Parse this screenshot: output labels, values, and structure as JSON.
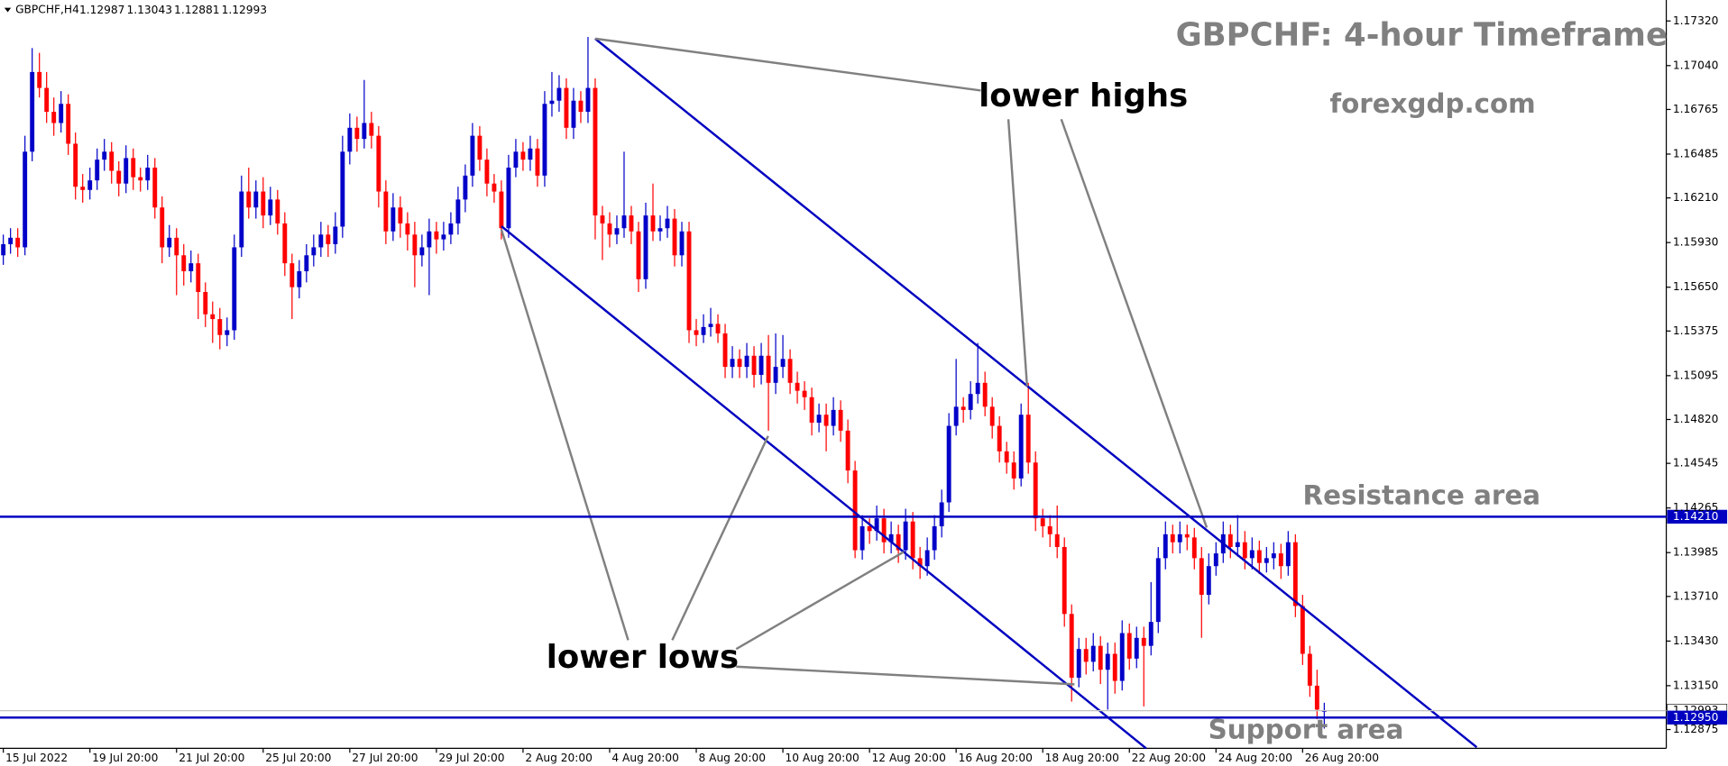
{
  "chart_data": {
    "type": "candlestick",
    "header": {
      "symbol": "GBPCHF,H4",
      "values": [
        1.12987,
        1.13043,
        1.12881,
        1.12993
      ]
    },
    "annotations": {
      "title": "GBPCHF: 4-hour Timeframe",
      "site": "forexgdp.com",
      "lower_highs": "lower highs",
      "lower_lows": "lower lows",
      "resistance": "Resistance area",
      "support": "Support area"
    },
    "up_color": "#0000c8",
    "down_color": "#ff0000",
    "ylim": [
      1.12757,
      1.17417
    ],
    "yticks": [
      {
        "value": 1.1732,
        "label": "1.17320"
      },
      {
        "value": 1.1704,
        "label": "1.17040"
      },
      1.16765,
      1.16485,
      {
        "value": 1.1621,
        "label": "1.16210"
      },
      {
        "value": 1.1593,
        "label": "1.15930"
      },
      {
        "value": 1.1565,
        "label": "1.15650"
      },
      1.15375,
      1.15095,
      {
        "value": 1.1482,
        "label": "1.14820"
      },
      1.14545,
      1.14265,
      1.13985,
      {
        "value": 1.1371,
        "label": "1.13710"
      },
      {
        "value": 1.1343,
        "label": "1.13430"
      },
      {
        "value": 1.1315,
        "label": "1.13150"
      },
      1.12875
    ],
    "resistance_level": {
      "value": 1.1421,
      "label": "1.14210"
    },
    "support_level": {
      "value": 1.1295,
      "label": "1.12950"
    },
    "last_price": 1.12993,
    "categories": [
      "15 Jul 2022",
      null,
      null,
      null,
      null,
      null,
      null,
      null,
      null,
      null,
      null,
      null,
      "19 Jul 20:00",
      null,
      null,
      null,
      null,
      null,
      null,
      null,
      null,
      null,
      null,
      null,
      "21 Jul 20:00",
      null,
      null,
      null,
      null,
      null,
      null,
      null,
      null,
      null,
      null,
      null,
      "25 Jul 20:00",
      null,
      null,
      null,
      null,
      null,
      null,
      null,
      null,
      null,
      null,
      null,
      "27 Jul 20:00",
      null,
      null,
      null,
      null,
      null,
      null,
      null,
      null,
      null,
      null,
      null,
      "29 Jul 20:00",
      null,
      null,
      null,
      null,
      null,
      null,
      null,
      null,
      null,
      null,
      null,
      "2 Aug 20:00",
      null,
      null,
      null,
      null,
      null,
      null,
      null,
      null,
      null,
      null,
      null,
      "4 Aug 20:00",
      null,
      null,
      null,
      null,
      null,
      null,
      null,
      null,
      null,
      null,
      null,
      "8 Aug 20:00",
      null,
      null,
      null,
      null,
      null,
      null,
      null,
      null,
      null,
      null,
      null,
      "10 Aug 20:00",
      null,
      null,
      null,
      null,
      null,
      null,
      null,
      null,
      null,
      null,
      null,
      "12 Aug 20:00",
      null,
      null,
      null,
      null,
      null,
      null,
      null,
      null,
      null,
      null,
      null,
      "16 Aug 20:00",
      null,
      null,
      null,
      null,
      null,
      null,
      null,
      null,
      null,
      null,
      null,
      "18 Aug 20:00",
      null,
      null,
      null,
      null,
      null,
      null,
      null,
      null,
      null,
      null,
      null,
      "22 Aug 20:00",
      null,
      null,
      null,
      null,
      null,
      null,
      null,
      null,
      null,
      null,
      null,
      "24 Aug 20:00",
      null,
      null,
      null,
      null,
      null,
      null,
      null,
      null,
      null,
      null,
      null,
      "26 Aug 20:00",
      null,
      null,
      null
    ],
    "candles": [
      [
        1.1585,
        1.1598,
        1.1579,
        1.1592
      ],
      [
        1.1592,
        1.1602,
        1.1586,
        1.1596
      ],
      [
        1.1596,
        1.1602,
        1.1584,
        1.159
      ],
      [
        1.159,
        1.166,
        1.1585,
        1.165
      ],
      [
        1.165,
        1.1715,
        1.1644,
        1.17
      ],
      [
        1.17,
        1.1712,
        1.1684,
        1.169
      ],
      [
        1.169,
        1.17,
        1.1668,
        1.1675
      ],
      [
        1.1675,
        1.1684,
        1.166,
        1.1668
      ],
      [
        1.1668,
        1.1688,
        1.1662,
        1.168
      ],
      [
        1.168,
        1.1686,
        1.1648,
        1.1655
      ],
      [
        1.1655,
        1.1662,
        1.162,
        1.1628
      ],
      [
        1.1628,
        1.1636,
        1.1618,
        1.1626
      ],
      [
        1.1626,
        1.164,
        1.162,
        1.1632
      ],
      [
        1.1632,
        1.1652,
        1.1626,
        1.1645
      ],
      [
        1.1645,
        1.1658,
        1.1638,
        1.165
      ],
      [
        1.165,
        1.1656,
        1.163,
        1.1638
      ],
      [
        1.1638,
        1.1644,
        1.1622,
        1.163
      ],
      [
        1.163,
        1.1654,
        1.1624,
        1.1646
      ],
      [
        1.1646,
        1.1652,
        1.1626,
        1.1634
      ],
      [
        1.1634,
        1.164,
        1.1625,
        1.1632
      ],
      [
        1.1632,
        1.1648,
        1.1626,
        1.164
      ],
      [
        1.164,
        1.1646,
        1.1608,
        1.1615
      ],
      [
        1.1615,
        1.1622,
        1.158,
        1.159
      ],
      [
        1.159,
        1.1604,
        1.1584,
        1.1596
      ],
      [
        1.1596,
        1.1602,
        1.156,
        1.1585
      ],
      [
        1.1585,
        1.1592,
        1.1566,
        1.1575
      ],
      [
        1.1575,
        1.1588,
        1.1568,
        1.158
      ],
      [
        1.158,
        1.1586,
        1.1545,
        1.1562
      ],
      [
        1.1562,
        1.1568,
        1.154,
        1.1548
      ],
      [
        1.1548,
        1.1556,
        1.153,
        1.1545
      ],
      [
        1.1545,
        1.1552,
        1.1526,
        1.1535
      ],
      [
        1.1535,
        1.1546,
        1.1528,
        1.1538
      ],
      [
        1.1538,
        1.1598,
        1.1532,
        1.159
      ],
      [
        1.159,
        1.1635,
        1.1584,
        1.1625
      ],
      [
        1.1625,
        1.164,
        1.1608,
        1.1615
      ],
      [
        1.1615,
        1.1632,
        1.1608,
        1.1625
      ],
      [
        1.1625,
        1.1634,
        1.1602,
        1.161
      ],
      [
        1.161,
        1.1628,
        1.1604,
        1.162
      ],
      [
        1.162,
        1.1626,
        1.1598,
        1.1605
      ],
      [
        1.1605,
        1.1612,
        1.1572,
        1.158
      ],
      [
        1.158,
        1.1586,
        1.1545,
        1.1565
      ],
      [
        1.1565,
        1.1582,
        1.1558,
        1.1575
      ],
      [
        1.1575,
        1.1592,
        1.1568,
        1.1585
      ],
      [
        1.1585,
        1.1598,
        1.1578,
        1.159
      ],
      [
        1.159,
        1.1606,
        1.1584,
        1.1598
      ],
      [
        1.1598,
        1.1604,
        1.1584,
        1.1592
      ],
      [
        1.1592,
        1.1612,
        1.1586,
        1.1603
      ],
      [
        1.1603,
        1.166,
        1.1596,
        1.165
      ],
      [
        1.165,
        1.1674,
        1.1642,
        1.1665
      ],
      [
        1.1665,
        1.1672,
        1.165,
        1.1658
      ],
      [
        1.1658,
        1.1695,
        1.1652,
        1.1668
      ],
      [
        1.1668,
        1.1675,
        1.1652,
        1.166
      ],
      [
        1.166,
        1.1666,
        1.1615,
        1.1625
      ],
      [
        1.1625,
        1.1632,
        1.1592,
        1.16
      ],
      [
        1.16,
        1.1624,
        1.1594,
        1.1615
      ],
      [
        1.1615,
        1.1622,
        1.1596,
        1.1605
      ],
      [
        1.1605,
        1.1612,
        1.1588,
        1.1598
      ],
      [
        1.1598,
        1.1606,
        1.1565,
        1.1585
      ],
      [
        1.1585,
        1.1598,
        1.1578,
        1.159
      ],
      [
        1.159,
        1.1608,
        1.156,
        1.16
      ],
      [
        1.16,
        1.1606,
        1.1586,
        1.1595
      ],
      [
        1.1595,
        1.1606,
        1.1588,
        1.1598
      ],
      [
        1.1598,
        1.1612,
        1.1592,
        1.1605
      ],
      [
        1.1605,
        1.1628,
        1.1598,
        1.162
      ],
      [
        1.162,
        1.1642,
        1.1612,
        1.1635
      ],
      [
        1.1635,
        1.1668,
        1.1628,
        1.166
      ],
      [
        1.166,
        1.1666,
        1.1638,
        1.1645
      ],
      [
        1.1645,
        1.1652,
        1.1622,
        1.163
      ],
      [
        1.163,
        1.1636,
        1.1618,
        1.1625
      ],
      [
        1.1625,
        1.1632,
        1.1595,
        1.1602
      ],
      [
        1.1602,
        1.1648,
        1.1596,
        1.164
      ],
      [
        1.164,
        1.1658,
        1.1634,
        1.165
      ],
      [
        1.165,
        1.1656,
        1.1638,
        1.1645
      ],
      [
        1.1645,
        1.166,
        1.1638,
        1.1652
      ],
      [
        1.1652,
        1.1658,
        1.1628,
        1.1635
      ],
      [
        1.1635,
        1.1688,
        1.1628,
        1.168
      ],
      [
        1.168,
        1.17,
        1.1672,
        1.1682
      ],
      [
        1.1682,
        1.1698,
        1.1675,
        1.169
      ],
      [
        1.169,
        1.1696,
        1.1658,
        1.1665
      ],
      [
        1.1665,
        1.169,
        1.1658,
        1.1682
      ],
      [
        1.1682,
        1.1688,
        1.1668,
        1.1675
      ],
      [
        1.1675,
        1.1722,
        1.1668,
        1.169
      ],
      [
        1.169,
        1.1696,
        1.1595,
        1.161
      ],
      [
        1.161,
        1.1616,
        1.1582,
        1.1605
      ],
      [
        1.1605,
        1.1612,
        1.159,
        1.1598
      ],
      [
        1.1598,
        1.161,
        1.1592,
        1.1602
      ],
      [
        1.1602,
        1.165,
        1.1596,
        1.161
      ],
      [
        1.161,
        1.1616,
        1.1592,
        1.16
      ],
      [
        1.16,
        1.1606,
        1.1562,
        1.157
      ],
      [
        1.157,
        1.1618,
        1.1564,
        1.161
      ],
      [
        1.161,
        1.163,
        1.1594,
        1.16
      ],
      [
        1.16,
        1.161,
        1.1594,
        1.1602
      ],
      [
        1.1602,
        1.1616,
        1.1596,
        1.1608
      ],
      [
        1.1608,
        1.1614,
        1.1578,
        1.1585
      ],
      [
        1.1585,
        1.1606,
        1.1578,
        1.16
      ],
      [
        1.16,
        1.1606,
        1.153,
        1.1538
      ],
      [
        1.1538,
        1.1545,
        1.1528,
        1.1535
      ],
      [
        1.1535,
        1.1548,
        1.153,
        1.154
      ],
      [
        1.154,
        1.1552,
        1.1534,
        1.1542
      ],
      [
        1.1542,
        1.1548,
        1.153,
        1.1536
      ],
      [
        1.1536,
        1.1542,
        1.1508,
        1.1515
      ],
      [
        1.1515,
        1.1528,
        1.1508,
        1.152
      ],
      [
        1.152,
        1.1526,
        1.1508,
        1.1515
      ],
      [
        1.1515,
        1.153,
        1.1508,
        1.1522
      ],
      [
        1.1522,
        1.1528,
        1.1502,
        1.151
      ],
      [
        1.151,
        1.153,
        1.1504,
        1.1522
      ],
      [
        1.1522,
        1.1535,
        1.1475,
        1.1505
      ],
      [
        1.1505,
        1.1536,
        1.1498,
        1.1515
      ],
      [
        1.1515,
        1.1535,
        1.1508,
        1.152
      ],
      [
        1.152,
        1.1526,
        1.1498,
        1.1505
      ],
      [
        1.1505,
        1.1512,
        1.1492,
        1.15
      ],
      [
        1.15,
        1.1506,
        1.1488,
        1.1496
      ],
      [
        1.1496,
        1.1502,
        1.1472,
        1.148
      ],
      [
        1.148,
        1.1492,
        1.1474,
        1.1485
      ],
      [
        1.1485,
        1.1492,
        1.1462,
        1.1478
      ],
      [
        1.1478,
        1.1496,
        1.1472,
        1.1488
      ],
      [
        1.1488,
        1.1494,
        1.1468,
        1.1475
      ],
      [
        1.1475,
        1.1482,
        1.1442,
        1.145
      ],
      [
        1.145,
        1.1456,
        1.1395,
        1.14
      ],
      [
        1.14,
        1.1422,
        1.1394,
        1.1415
      ],
      [
        1.1415,
        1.142,
        1.1404,
        1.1412
      ],
      [
        1.1412,
        1.1428,
        1.1406,
        1.142
      ],
      [
        1.142,
        1.1426,
        1.1398,
        1.1405
      ],
      [
        1.1405,
        1.1418,
        1.1398,
        1.141
      ],
      [
        1.141,
        1.1416,
        1.1392,
        1.14
      ],
      [
        1.14,
        1.1426,
        1.1394,
        1.1418
      ],
      [
        1.1418,
        1.1424,
        1.1388,
        1.1395
      ],
      [
        1.1395,
        1.1402,
        1.1382,
        1.139
      ],
      [
        1.139,
        1.1408,
        1.1384,
        1.14
      ],
      [
        1.14,
        1.1422,
        1.1394,
        1.1415
      ],
      [
        1.1415,
        1.1438,
        1.1408,
        1.143
      ],
      [
        1.143,
        1.1486,
        1.1424,
        1.1478
      ],
      [
        1.1478,
        1.152,
        1.1472,
        1.149
      ],
      [
        1.149,
        1.1496,
        1.148,
        1.1488
      ],
      [
        1.1488,
        1.1506,
        1.1482,
        1.1498
      ],
      [
        1.1498,
        1.153,
        1.1492,
        1.1505
      ],
      [
        1.1505,
        1.1512,
        1.1484,
        1.149
      ],
      [
        1.149,
        1.1496,
        1.147,
        1.1478
      ],
      [
        1.1478,
        1.1484,
        1.1455,
        1.1462
      ],
      [
        1.1462,
        1.1468,
        1.1448,
        1.1455
      ],
      [
        1.1455,
        1.1462,
        1.1438,
        1.1445
      ],
      [
        1.1445,
        1.1492,
        1.144,
        1.1485
      ],
      [
        1.1485,
        1.1505,
        1.1448,
        1.1455
      ],
      [
        1.1455,
        1.1462,
        1.1412,
        1.142
      ],
      [
        1.142,
        1.1426,
        1.1408,
        1.1415
      ],
      [
        1.1415,
        1.1422,
        1.1402,
        1.141
      ],
      [
        1.141,
        1.1428,
        1.1395,
        1.1402
      ],
      [
        1.1402,
        1.1408,
        1.1352,
        1.136
      ],
      [
        1.136,
        1.1366,
        1.1305,
        1.132
      ],
      [
        1.132,
        1.1345,
        1.1314,
        1.1338
      ],
      [
        1.1338,
        1.1345,
        1.1322,
        1.133
      ],
      [
        1.133,
        1.1348,
        1.1324,
        1.134
      ],
      [
        1.134,
        1.1346,
        1.1316,
        1.1325
      ],
      [
        1.1325,
        1.1342,
        1.13,
        1.1335
      ],
      [
        1.1335,
        1.1342,
        1.131,
        1.1318
      ],
      [
        1.1318,
        1.1356,
        1.1312,
        1.1348
      ],
      [
        1.1348,
        1.1354,
        1.1325,
        1.1332
      ],
      [
        1.1332,
        1.1352,
        1.1326,
        1.1345
      ],
      [
        1.1345,
        1.1352,
        1.1302,
        1.134
      ],
      [
        1.134,
        1.138,
        1.1334,
        1.1355
      ],
      [
        1.1355,
        1.1402,
        1.1348,
        1.1395
      ],
      [
        1.1395,
        1.1418,
        1.1388,
        1.141
      ],
      [
        1.141,
        1.1416,
        1.1398,
        1.1405
      ],
      [
        1.1405,
        1.1418,
        1.1398,
        1.141
      ],
      [
        1.141,
        1.1416,
        1.14,
        1.1408
      ],
      [
        1.1408,
        1.1414,
        1.1388,
        1.1395
      ],
      [
        1.1395,
        1.1402,
        1.1345,
        1.1372
      ],
      [
        1.1372,
        1.1398,
        1.1366,
        1.139
      ],
      [
        1.139,
        1.1405,
        1.1384,
        1.1398
      ],
      [
        1.1398,
        1.1418,
        1.1392,
        1.141
      ],
      [
        1.141,
        1.1416,
        1.1395,
        1.1402
      ],
      [
        1.1402,
        1.1422,
        1.1396,
        1.1405
      ],
      [
        1.1405,
        1.1412,
        1.1388,
        1.1395
      ],
      [
        1.1395,
        1.1408,
        1.1388,
        1.14
      ],
      [
        1.14,
        1.1406,
        1.1385,
        1.1392
      ],
      [
        1.1392,
        1.1402,
        1.1386,
        1.1395
      ],
      [
        1.1395,
        1.1405,
        1.1388,
        1.1398
      ],
      [
        1.1398,
        1.1404,
        1.1382,
        1.139
      ],
      [
        1.139,
        1.1412,
        1.1384,
        1.1405
      ],
      [
        1.1405,
        1.141,
        1.1358,
        1.1365
      ],
      [
        1.1365,
        1.1372,
        1.1328,
        1.1335
      ],
      [
        1.1335,
        1.134,
        1.1308,
        1.1315
      ],
      [
        1.1315,
        1.1325,
        1.1294,
        1.13
      ],
      [
        1.12987,
        1.13043,
        1.12881,
        1.12993
      ]
    ]
  }
}
